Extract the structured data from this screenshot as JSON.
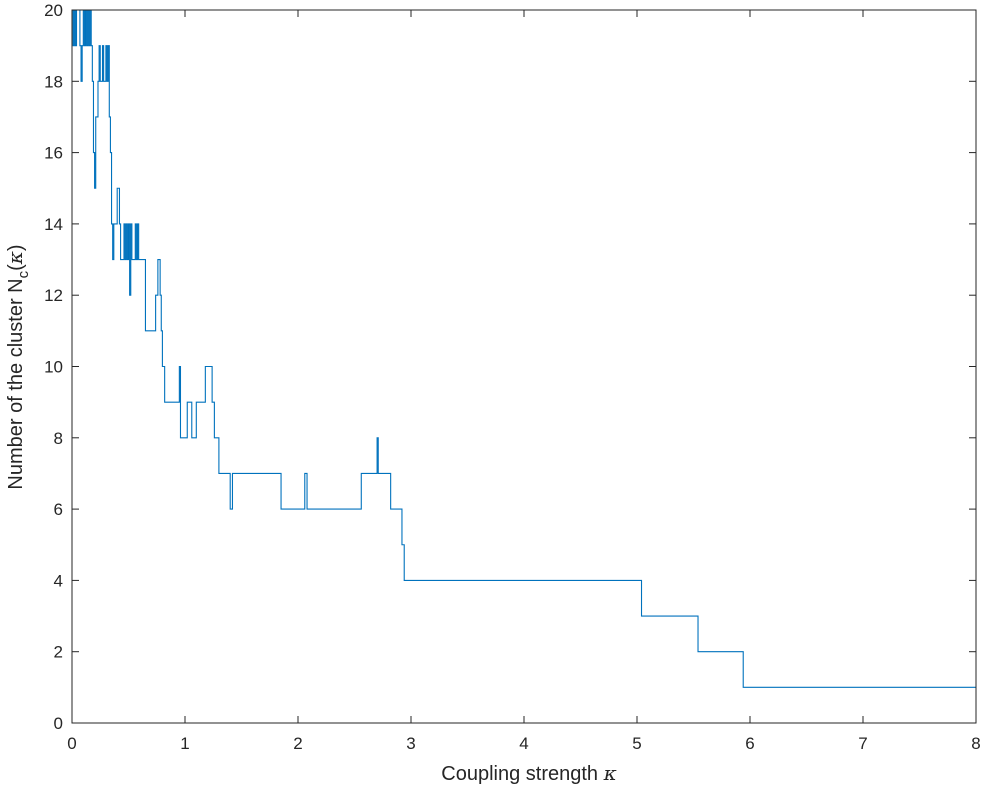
{
  "chart_data": {
    "type": "line",
    "title": "",
    "xlabel": {
      "text": "Coupling strength ",
      "symbol": "κ"
    },
    "ylabel": {
      "text": "Number of the cluster N",
      "subscript": "c",
      "open_paren": "(",
      "symbol": "κ",
      "close_paren": ")"
    },
    "xlim": [
      0,
      8
    ],
    "ylim": [
      0,
      20
    ],
    "x_ticks": [
      0,
      1,
      2,
      3,
      4,
      5,
      6,
      7,
      8
    ],
    "x_tick_labels": [
      "0",
      "1",
      "2",
      "3",
      "4",
      "5",
      "6",
      "7",
      "8"
    ],
    "y_ticks": [
      0,
      2,
      4,
      6,
      8,
      10,
      12,
      14,
      16,
      18,
      20
    ],
    "y_tick_labels": [
      "0",
      "2",
      "4",
      "6",
      "8",
      "10",
      "12",
      "14",
      "16",
      "18",
      "20"
    ],
    "grid": false,
    "box": true,
    "line_color": "#0072BD",
    "axis_color": "#262626",
    "series": [
      {
        "style": "stairs",
        "points": [
          [
            0.0,
            20
          ],
          [
            0.01,
            19
          ],
          [
            0.02,
            20
          ],
          [
            0.03,
            19
          ],
          [
            0.04,
            20
          ],
          [
            0.05,
            20
          ],
          [
            0.07,
            19
          ],
          [
            0.08,
            18
          ],
          [
            0.09,
            19
          ],
          [
            0.1,
            20
          ],
          [
            0.11,
            19
          ],
          [
            0.12,
            20
          ],
          [
            0.13,
            19
          ],
          [
            0.14,
            20
          ],
          [
            0.15,
            19
          ],
          [
            0.16,
            20
          ],
          [
            0.17,
            19
          ],
          [
            0.18,
            18
          ],
          [
            0.19,
            16
          ],
          [
            0.2,
            15
          ],
          [
            0.21,
            17
          ],
          [
            0.23,
            18
          ],
          [
            0.24,
            19
          ],
          [
            0.25,
            18
          ],
          [
            0.27,
            19
          ],
          [
            0.28,
            18
          ],
          [
            0.3,
            19
          ],
          [
            0.31,
            18
          ],
          [
            0.32,
            19
          ],
          [
            0.33,
            17
          ],
          [
            0.34,
            16
          ],
          [
            0.35,
            14
          ],
          [
            0.36,
            13
          ],
          [
            0.37,
            14
          ],
          [
            0.4,
            15
          ],
          [
            0.42,
            14
          ],
          [
            0.43,
            13
          ],
          [
            0.46,
            14
          ],
          [
            0.47,
            13
          ],
          [
            0.48,
            14
          ],
          [
            0.49,
            13
          ],
          [
            0.5,
            14
          ],
          [
            0.51,
            12
          ],
          [
            0.52,
            14
          ],
          [
            0.53,
            13
          ],
          [
            0.56,
            14
          ],
          [
            0.57,
            13
          ],
          [
            0.58,
            14
          ],
          [
            0.59,
            13
          ],
          [
            0.65,
            11
          ],
          [
            0.74,
            12
          ],
          [
            0.76,
            13
          ],
          [
            0.78,
            12
          ],
          [
            0.79,
            11
          ],
          [
            0.8,
            10
          ],
          [
            0.82,
            9
          ],
          [
            0.95,
            10
          ],
          [
            0.96,
            8
          ],
          [
            1.02,
            9
          ],
          [
            1.06,
            8
          ],
          [
            1.1,
            9
          ],
          [
            1.18,
            10
          ],
          [
            1.24,
            9
          ],
          [
            1.26,
            8
          ],
          [
            1.3,
            7
          ],
          [
            1.4,
            6
          ],
          [
            1.42,
            7
          ],
          [
            1.85,
            6
          ],
          [
            2.06,
            7
          ],
          [
            2.08,
            6
          ],
          [
            2.56,
            7
          ],
          [
            2.7,
            8
          ],
          [
            2.71,
            7
          ],
          [
            2.82,
            6
          ],
          [
            2.92,
            5
          ],
          [
            2.94,
            4
          ],
          [
            5.04,
            3
          ],
          [
            5.54,
            2
          ],
          [
            5.94,
            1
          ],
          [
            8.0,
            1
          ]
        ]
      }
    ]
  }
}
